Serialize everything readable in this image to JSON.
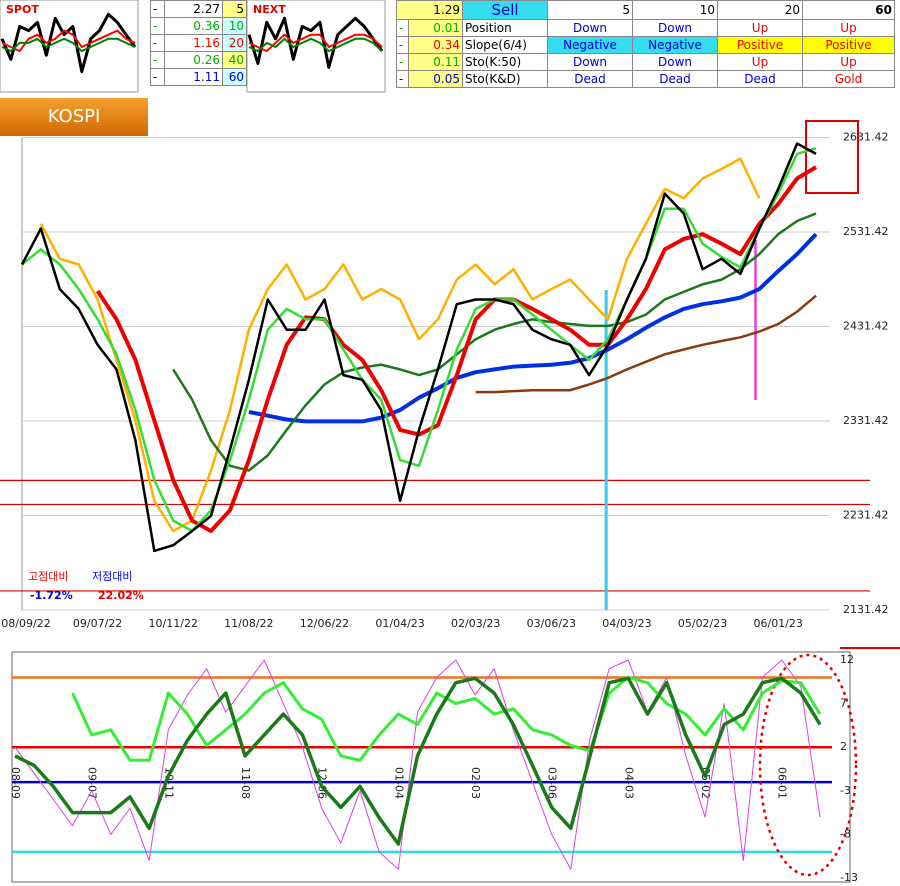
{
  "table": {
    "left": [
      [
        "-",
        "2.27",
        "5"
      ],
      [
        "-",
        "0.36",
        "10"
      ],
      [
        "-",
        "1.16",
        "20"
      ],
      [
        "-",
        "0.26",
        "40"
      ],
      [
        "-",
        "1.11",
        "60"
      ]
    ],
    "right": [
      [
        "1.29",
        "Sell",
        "5",
        "10",
        "20",
        "60"
      ],
      [
        "-",
        "0.01",
        "Position",
        "Down",
        "Down",
        "Up",
        "Up"
      ],
      [
        "-",
        "0.34",
        "Slope(6/4)",
        "Negative",
        "Negative",
        "Positive",
        "Positive"
      ],
      [
        "-",
        "0.11",
        "Sto(K:50)",
        "Down",
        "Down",
        "Up",
        "Up"
      ],
      [
        "-",
        "0.05",
        "Sto(K&D)",
        "Dead",
        "Dead",
        "Dead",
        "Gold"
      ]
    ]
  },
  "chart_data": [
    {
      "type": "line",
      "title": "SPOT",
      "ylim": [
        -10,
        10
      ],
      "series": [
        {
          "color": "#000000",
          "width": 3,
          "values": [
            2,
            -3,
            5,
            4,
            6,
            -2,
            7,
            3,
            5,
            -6,
            2,
            4,
            8,
            6,
            3,
            0
          ]
        },
        {
          "color": "#ff0000",
          "width": 2,
          "values": [
            1,
            0,
            -1,
            2,
            3,
            1,
            2,
            4,
            3,
            0,
            1,
            2,
            3,
            4,
            2,
            1
          ]
        },
        {
          "color": "#008000",
          "width": 2,
          "values": [
            0,
            -1,
            1,
            1,
            2,
            0,
            1,
            2,
            1,
            -1,
            0,
            1,
            2,
            2,
            1,
            0
          ]
        }
      ]
    },
    {
      "type": "line",
      "title": "NEXT",
      "ylim": [
        -10,
        10
      ],
      "series": [
        {
          "color": "#000000",
          "width": 3,
          "values": [
            3,
            -4,
            6,
            2,
            7,
            -3,
            5,
            4,
            6,
            -5,
            3,
            5,
            7,
            5,
            2,
            -1
          ]
        },
        {
          "color": "#ff0000",
          "width": 2,
          "values": [
            1,
            0,
            -1,
            1,
            3,
            1,
            2,
            3,
            3,
            0,
            1,
            2,
            3,
            3,
            2,
            0
          ]
        },
        {
          "color": "#008000",
          "width": 2,
          "values": [
            0,
            -1,
            1,
            0,
            2,
            0,
            1,
            2,
            1,
            -1,
            0,
            1,
            2,
            2,
            1,
            -1
          ]
        }
      ]
    },
    {
      "type": "line",
      "title": "KOSPI",
      "ylim": [
        2131.42,
        2641.42
      ],
      "yticks": [
        2131.42,
        2231.42,
        2331.42,
        2431.42,
        2531.42,
        2631.42
      ],
      "grid": true,
      "categories": [
        "08/09/22",
        null,
        null,
        null,
        "09/07/22",
        null,
        null,
        null,
        "10/11/22",
        null,
        null,
        null,
        "11/08/22",
        null,
        null,
        null,
        "12/06/22",
        null,
        null,
        null,
        "01/04/23",
        null,
        null,
        null,
        "02/03/23",
        null,
        null,
        null,
        "03/06/23",
        null,
        null,
        null,
        "04/03/23",
        null,
        null,
        null,
        "05/02/23",
        null,
        null,
        null,
        "06/01/23",
        null,
        null
      ],
      "hlines": [
        {
          "value": 2268.6,
          "color": "#e00000"
        },
        {
          "value": 2243.1,
          "color": "#e00000"
        },
        {
          "value": 2151.6,
          "color": "#e00000"
        }
      ],
      "annotations": [
        {
          "text": "고점대비",
          "color": "#e00000"
        },
        {
          "text": "저점대비",
          "color": "#0000e0"
        },
        {
          "text": "-1.72%",
          "color": "#0000e0"
        },
        {
          "text": "22.02%",
          "color": "#e00000"
        }
      ],
      "series": [
        {
          "color": "#ffb000",
          "width": 2.5,
          "values": [
            null,
            2540,
            2503,
            2497,
            2460,
            2396,
            2332,
            2247,
            2215,
            2226,
            2279,
            2343,
            2428,
            2471,
            2497,
            2460,
            2471,
            2497,
            2460,
            2471,
            2460,
            2418,
            2439,
            2481,
            2497,
            2476,
            2492,
            2460,
            2471,
            2481,
            2460,
            2439,
            2503,
            2540,
            2577,
            2567,
            2588,
            2598,
            2609,
            2567,
            null,
            null,
            null
          ]
        },
        {
          "color": "#8b3a0e",
          "width": 2.5,
          "values": [
            null,
            null,
            null,
            null,
            null,
            null,
            null,
            null,
            null,
            null,
            null,
            null,
            null,
            null,
            null,
            null,
            null,
            null,
            null,
            null,
            null,
            null,
            null,
            null,
            2362,
            2362,
            2363,
            2364,
            2364,
            2364,
            2370,
            2377,
            2386,
            2394,
            2402,
            2407,
            2412,
            2416,
            2420,
            2426,
            2434,
            2447,
            2464
          ]
        },
        {
          "color": "#0030e0",
          "width": 4,
          "values": [
            null,
            null,
            null,
            null,
            null,
            null,
            null,
            null,
            null,
            null,
            null,
            null,
            2341,
            2337,
            2333,
            2331,
            2331,
            2331,
            2331,
            2335,
            2343,
            2356,
            2366,
            2377,
            2383,
            2386,
            2389,
            2390,
            2391,
            2393,
            2398,
            2407,
            2418,
            2430,
            2441,
            2450,
            2455,
            2458,
            2462,
            2471,
            2490,
            2508,
            2529
          ]
        },
        {
          "color": "#1a7a1a",
          "width": 2.5,
          "values": [
            null,
            null,
            null,
            null,
            null,
            null,
            null,
            null,
            2386,
            2354,
            2311,
            2284,
            2279,
            2295,
            2322,
            2348,
            2370,
            2383,
            2388,
            2391,
            2386,
            2380,
            2386,
            2402,
            2418,
            2428,
            2434,
            2439,
            2436,
            2434,
            2432,
            2432,
            2436,
            2444,
            2460,
            2468,
            2476,
            2481,
            2492,
            2508,
            2529,
            2543,
            2551
          ]
        },
        {
          "color": "#ee0000",
          "width": 4,
          "values": [
            null,
            null,
            null,
            null,
            2469,
            2439,
            2396,
            2332,
            2269,
            2226,
            2215,
            2237,
            2290,
            2354,
            2412,
            2441,
            2439,
            2412,
            2396,
            2364,
            2322,
            2317,
            2327,
            2380,
            2439,
            2460,
            2460,
            2450,
            2439,
            2428,
            2412,
            2412,
            2439,
            2471,
            2513,
            2524,
            2529,
            2519,
            2508,
            2540,
            2561,
            2588,
            2600
          ]
        },
        {
          "color": "#33dd33",
          "width": 2.5,
          "values": [
            2497,
            2513,
            2497,
            2471,
            2439,
            2402,
            2343,
            2269,
            2226,
            2215,
            2237,
            2290,
            2354,
            2428,
            2450,
            2439,
            2439,
            2407,
            2375,
            2354,
            2290,
            2284,
            2343,
            2407,
            2450,
            2460,
            2460,
            2444,
            2428,
            2412,
            2396,
            2418,
            2460,
            2503,
            2556,
            2556,
            2519,
            2505,
            2494,
            2535,
            2572,
            2614,
            2620
          ]
        },
        {
          "color": "#000000",
          "width": 2.5,
          "values": [
            2497,
            2535,
            2471,
            2450,
            2412,
            2386,
            2311,
            2194,
            2200,
            2215,
            2231,
            2301,
            2375,
            2460,
            2428,
            2428,
            2460,
            2380,
            2375,
            2343,
            2247,
            2322,
            2386,
            2455,
            2460,
            2460,
            2455,
            2428,
            2418,
            2412,
            2380,
            2412,
            2460,
            2503,
            2572,
            2551,
            2492,
            2503,
            2487,
            2535,
            2577,
            2625,
            2614
          ]
        }
      ]
    },
    {
      "type": "line",
      "ylim": [
        -13,
        12
      ],
      "yticks": [
        12,
        7,
        2,
        -3,
        -8,
        -13
      ],
      "categories": [
        "08-09",
        null,
        null,
        null,
        "09-07",
        null,
        null,
        null,
        "10-11",
        null,
        null,
        null,
        "11-08",
        null,
        null,
        null,
        "12-06",
        null,
        null,
        null,
        "01-04",
        null,
        null,
        null,
        "02-03",
        null,
        null,
        null,
        "03-06",
        null,
        null,
        null,
        "04-03",
        null,
        null,
        null,
        "05-02",
        null,
        null,
        null,
        "06-01",
        null,
        null
      ],
      "hlines": [
        {
          "value": 10,
          "color": "#f07020"
        },
        {
          "value": 2,
          "color": "#ee0000"
        },
        {
          "value": -2,
          "color": "#0000cc"
        },
        {
          "value": -10,
          "color": "#33dddd"
        }
      ],
      "series": [
        {
          "color": "#e040e0",
          "width": 1,
          "values": [
            2,
            -1,
            -4,
            -7,
            -3,
            -8,
            -5,
            -11,
            4,
            8,
            11,
            6,
            9,
            12,
            7,
            2,
            -5,
            -9,
            -3,
            -10,
            -12,
            6,
            10,
            12,
            8,
            11,
            4,
            -2,
            -8,
            -12,
            3,
            11,
            12,
            6,
            10,
            1,
            -6,
            7,
            -11,
            10,
            12,
            9,
            -6
          ]
        },
        {
          "color": "#33ee33",
          "width": 3,
          "values": [
            null,
            null,
            null,
            8.2,
            3.4,
            4.0,
            0.5,
            0.5,
            8.2,
            5.8,
            2.2,
            4.0,
            5.8,
            8.2,
            9.4,
            6.4,
            5.2,
            1.0,
            0.5,
            3.4,
            5.8,
            4.6,
            8.2,
            7.0,
            7.6,
            5.8,
            6.4,
            4.0,
            3.4,
            2.2,
            1.6,
            8.2,
            10.0,
            9.4,
            7.0,
            5.8,
            3.4,
            6.4,
            4.0,
            8.2,
            9.6,
            9.4,
            5.8
          ]
        },
        {
          "color": "#1a7a1a",
          "width": 3.5,
          "values": [
            1.0,
            -0.1,
            -2.5,
            -5.5,
            -5.5,
            -5.5,
            -3.7,
            -7.3,
            -1.3,
            2.8,
            5.8,
            8.2,
            1.0,
            3.4,
            5.8,
            3.4,
            -2.5,
            -4.9,
            -2.5,
            -6.1,
            -9.1,
            1.0,
            5.8,
            9.4,
            9.9,
            8.2,
            4.6,
            -0.1,
            -4.9,
            -7.3,
            1.0,
            9.4,
            9.9,
            5.8,
            9.4,
            3.4,
            -1.3,
            4.6,
            5.8,
            9.4,
            9.9,
            8.2,
            4.6
          ]
        }
      ]
    }
  ]
}
